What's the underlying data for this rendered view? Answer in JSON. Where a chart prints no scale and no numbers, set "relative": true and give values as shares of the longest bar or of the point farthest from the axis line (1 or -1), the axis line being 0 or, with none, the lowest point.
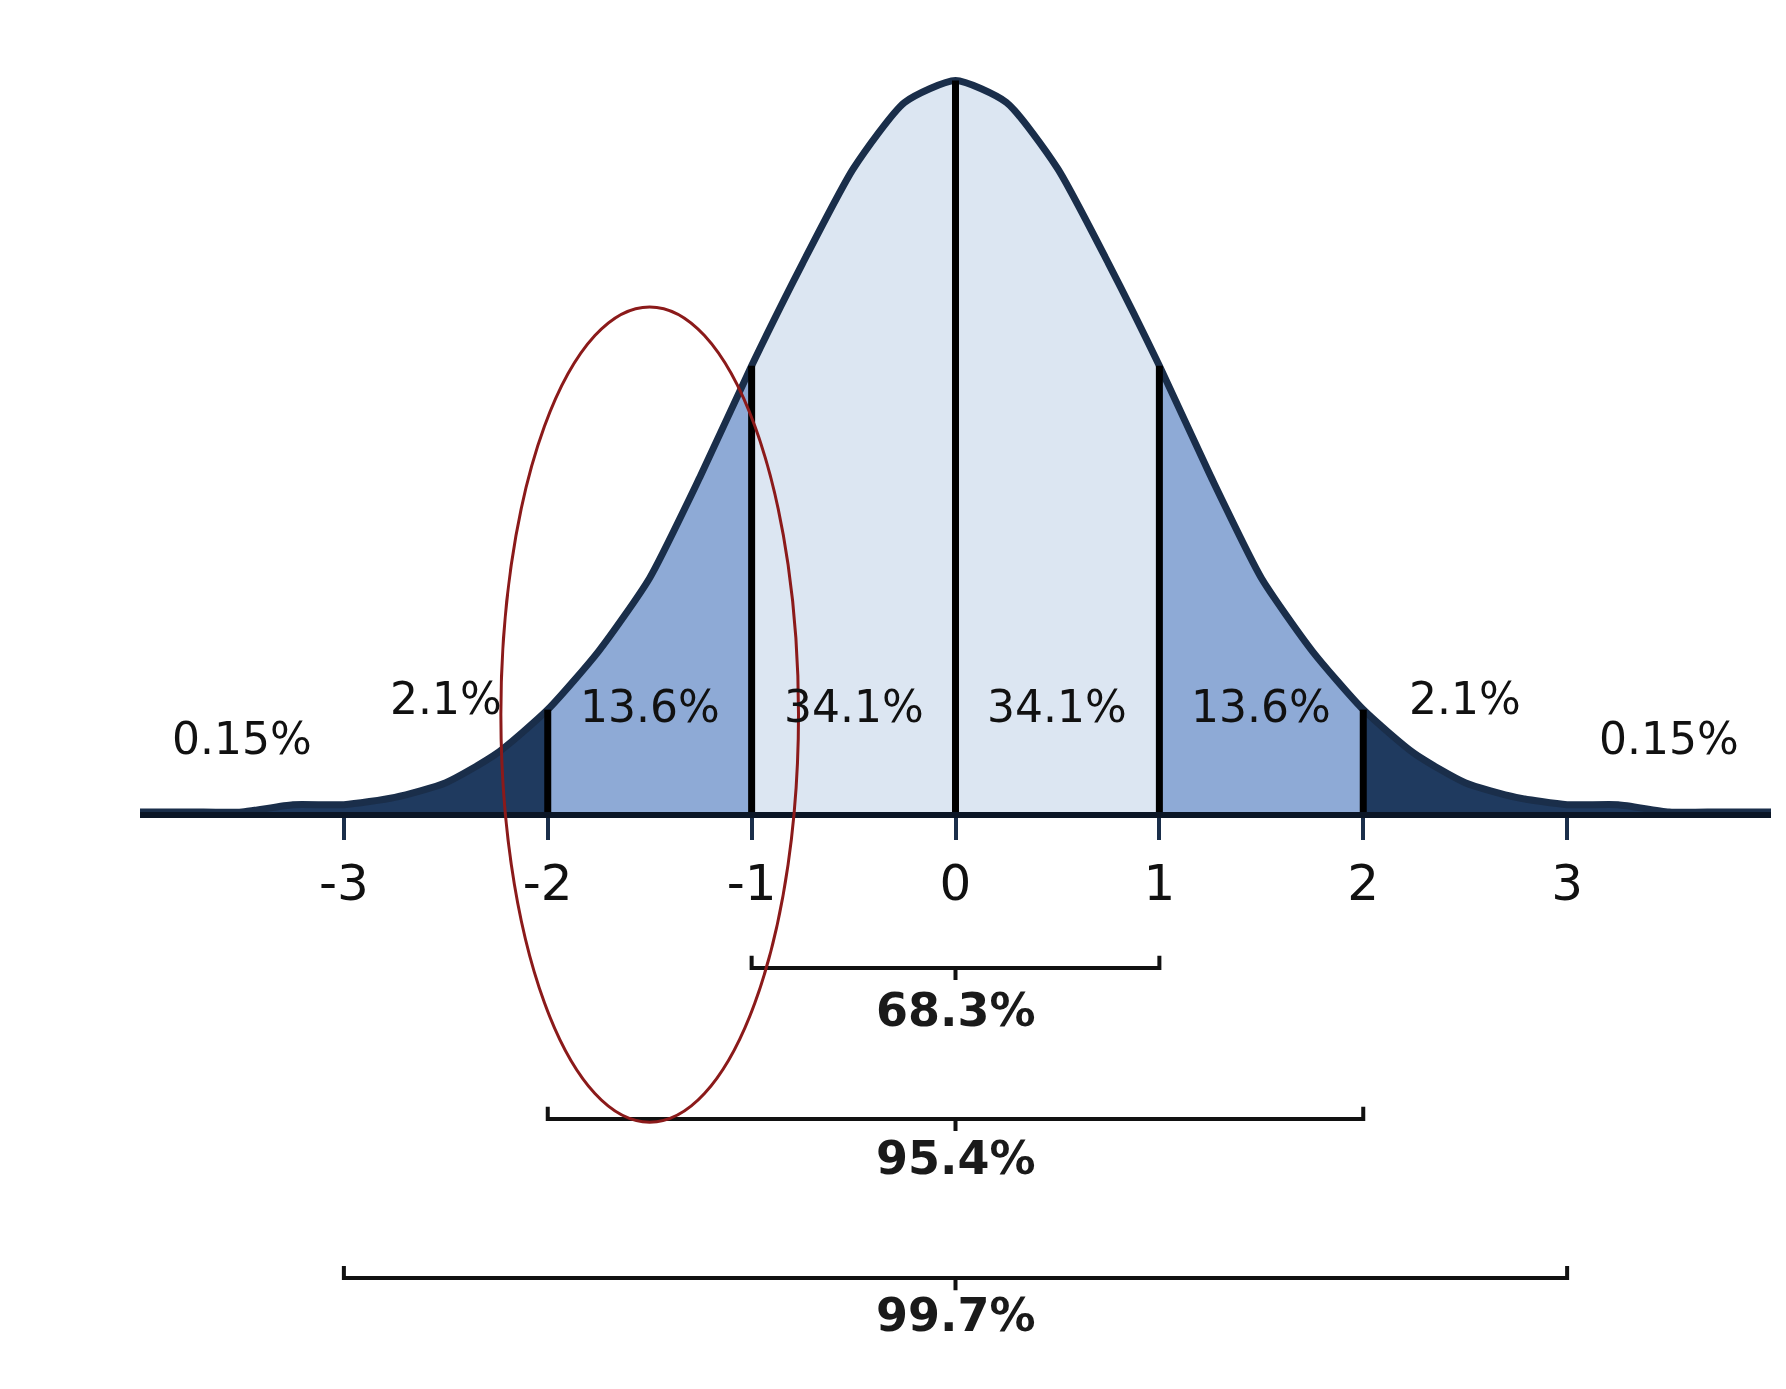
{
  "chart_data": {
    "type": "area",
    "relative": true,
    "tick_labels": "x",
    "xlim": [
      -4,
      4
    ],
    "xticks": [
      -3,
      -2,
      -1,
      0,
      1,
      2,
      3
    ],
    "series": [
      {
        "color": "#1f3a5f",
        "x": [
          -4,
          -3.75,
          -3.5,
          -3.25,
          -3,
          -2.75,
          -2.5,
          -2.25,
          -2
        ],
        "values": [
          0.0,
          0.0,
          0.0,
          0.01,
          0.01,
          0.02,
          0.04,
          0.08,
          0.14
        ]
      },
      {
        "color": "#8eaad6",
        "x": [
          -2,
          -1.75,
          -1.5,
          -1.25,
          -1
        ],
        "values": [
          0.14,
          0.22,
          0.32,
          0.46,
          0.61
        ]
      },
      {
        "color": "#dce6f2",
        "x": [
          -1,
          -0.75,
          -0.5,
          -0.25,
          0,
          0.25,
          0.5,
          0.75,
          1
        ],
        "values": [
          0.61,
          0.75,
          0.88,
          0.97,
          1.0,
          0.97,
          0.88,
          0.75,
          0.61
        ]
      },
      {
        "color": "#8eaad6",
        "x": [
          1,
          1.25,
          1.5,
          1.75,
          2
        ],
        "values": [
          0.61,
          0.46,
          0.32,
          0.22,
          0.14
        ]
      },
      {
        "color": "#1f3a5f",
        "x": [
          2,
          2.25,
          2.5,
          2.75,
          3,
          3.25,
          3.5,
          3.75,
          4
        ],
        "values": [
          0.14,
          0.08,
          0.04,
          0.02,
          0.01,
          0.01,
          0.0,
          0.0,
          0.0
        ]
      },
      {
        "type": "line",
        "color": "#1a2e4a",
        "x": [
          -4,
          -3.75,
          -3.5,
          -3.25,
          -3,
          -2.75,
          -2.5,
          -2.25,
          -2,
          -1.75,
          -1.5,
          -1.25,
          -1,
          -0.75,
          -0.5,
          -0.25,
          0,
          0.25,
          0.5,
          0.75,
          1,
          1.25,
          1.5,
          1.75,
          2,
          2.25,
          2.5,
          2.75,
          3,
          3.25,
          3.5,
          3.75,
          4
        ],
        "values": [
          0.0,
          0.0,
          0.0,
          0.01,
          0.01,
          0.02,
          0.04,
          0.08,
          0.14,
          0.22,
          0.32,
          0.46,
          0.61,
          0.75,
          0.88,
          0.97,
          1.0,
          0.97,
          0.88,
          0.75,
          0.61,
          0.46,
          0.32,
          0.22,
          0.14,
          0.08,
          0.04,
          0.02,
          0.01,
          0.01,
          0.0,
          0.0,
          0.0
        ]
      }
    ],
    "ref_lines": [
      {
        "axis": "x",
        "value": -2,
        "color": "#000000"
      },
      {
        "axis": "x",
        "value": -1,
        "color": "#000000"
      },
      {
        "axis": "x",
        "value": 0,
        "color": "#000000"
      },
      {
        "axis": "x",
        "value": 1,
        "color": "#000000"
      },
      {
        "axis": "x",
        "value": 2,
        "color": "#000000"
      }
    ],
    "annotations": [
      "0.15%",
      "2.1%",
      "13.6%",
      "34.1%",
      "34.1%",
      "13.6%",
      "2.1%",
      "0.15%",
      "68.3%",
      "95.4%",
      "99.7%"
    ]
  }
}
